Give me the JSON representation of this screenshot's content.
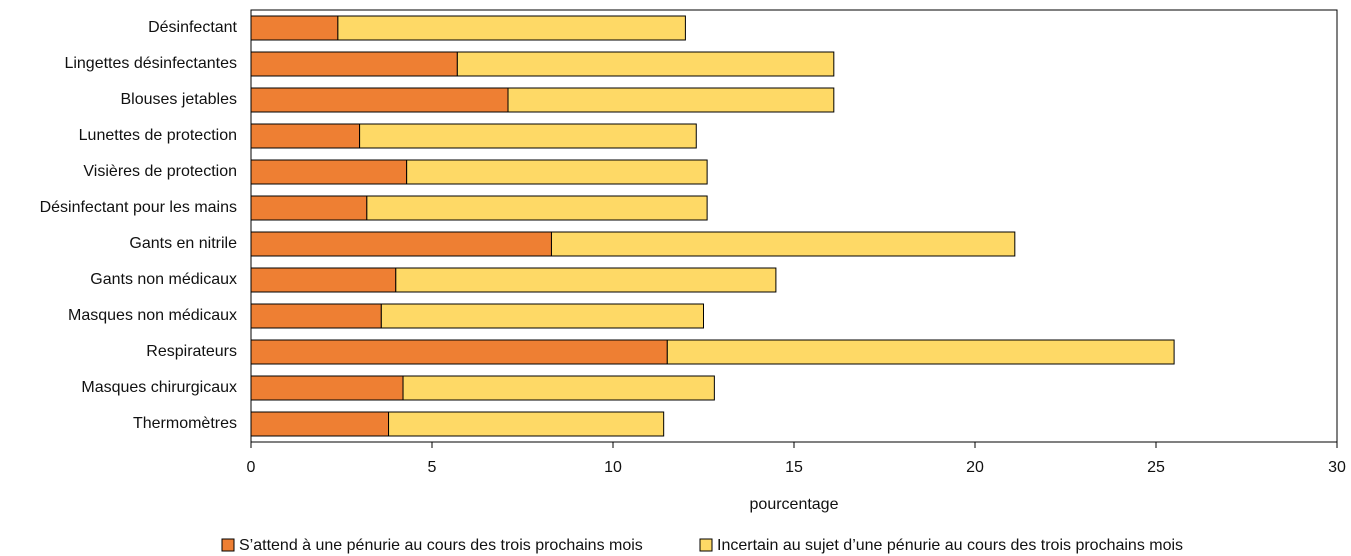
{
  "chart_data": {
    "type": "stacked_barh",
    "categories": [
      "Désinfectant",
      "Lingettes désinfectantes",
      "Blouses jetables",
      "Lunettes de protection",
      "Visières de protection",
      "Désinfectant pour les mains",
      "Gants en nitrile",
      "Gants non médicaux",
      "Masques non médicaux",
      "Respirateurs",
      "Masques chirurgicaux",
      "Thermomètres"
    ],
    "series": [
      {
        "name": "S’attend à une pénurie au cours des trois prochains mois",
        "color": "#ee7f33",
        "values": [
          2.4,
          5.7,
          7.1,
          3.0,
          4.3,
          3.2,
          8.3,
          4.0,
          3.6,
          11.5,
          4.2,
          3.8
        ]
      },
      {
        "name": "Incertain au sujet d’une pénurie au cours des trois prochains mois",
        "color": "#fed966",
        "values": [
          9.6,
          10.4,
          9.0,
          9.3,
          8.3,
          9.4,
          12.8,
          10.5,
          8.9,
          14.0,
          8.6,
          7.6
        ]
      }
    ],
    "xlabel": "pourcentage",
    "xlim": [
      0,
      30
    ],
    "xticks": [
      0,
      5,
      10,
      15,
      20,
      25,
      30
    ],
    "legend": "bottom"
  }
}
